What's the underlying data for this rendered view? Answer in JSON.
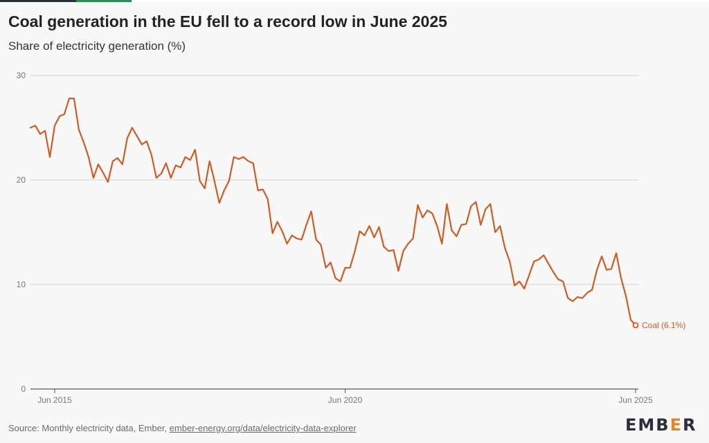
{
  "title": "Coal generation in the EU fell to a record low in June 2025",
  "subtitle": "Share of electricity generation (%)",
  "footer": {
    "source_prefix": "Source: Monthly electricity data, Ember, ",
    "source_link": "ember-energy.org/data/electricity-data-explorer"
  },
  "logo": {
    "part1": "EMB",
    "part2": "E",
    "part3": "R"
  },
  "colors": {
    "series": "#cf5a24",
    "grid": "#cfcfcf",
    "axis": "#555555",
    "brand_dark": "#2b2f3a",
    "brand_accent": "#e08a23"
  },
  "chart_data": {
    "type": "line",
    "title": "Coal generation in the EU fell to a record low in June 2025",
    "subtitle": "Share of electricity generation (%)",
    "ylim": [
      0,
      30
    ],
    "yticks": [
      0,
      10,
      20,
      30
    ],
    "xlim": [
      "2015-01",
      "2025-06"
    ],
    "xticks": [
      {
        "x": "2015-06",
        "label": "Jun 2015"
      },
      {
        "x": "2020-06",
        "label": "Jun 2020"
      },
      {
        "x": "2025-06",
        "label": "Jun 2025"
      }
    ],
    "grid": true,
    "end_label": "Coal (6.1%)",
    "series": [
      {
        "name": "Coal",
        "x": [
          "2015-01",
          "2015-02",
          "2015-03",
          "2015-04",
          "2015-05",
          "2015-06",
          "2015-07",
          "2015-08",
          "2015-09",
          "2015-10",
          "2015-11",
          "2015-12",
          "2016-01",
          "2016-02",
          "2016-03",
          "2016-04",
          "2016-05",
          "2016-06",
          "2016-07",
          "2016-08",
          "2016-09",
          "2016-10",
          "2016-11",
          "2016-12",
          "2017-01",
          "2017-02",
          "2017-03",
          "2017-04",
          "2017-05",
          "2017-06",
          "2017-07",
          "2017-08",
          "2017-09",
          "2017-10",
          "2017-11",
          "2017-12",
          "2018-01",
          "2018-02",
          "2018-03",
          "2018-04",
          "2018-05",
          "2018-06",
          "2018-07",
          "2018-08",
          "2018-09",
          "2018-10",
          "2018-11",
          "2018-12",
          "2019-01",
          "2019-02",
          "2019-03",
          "2019-04",
          "2019-05",
          "2019-06",
          "2019-07",
          "2019-08",
          "2019-09",
          "2019-10",
          "2019-11",
          "2019-12",
          "2020-01",
          "2020-02",
          "2020-03",
          "2020-04",
          "2020-05",
          "2020-06",
          "2020-07",
          "2020-08",
          "2020-09",
          "2020-10",
          "2020-11",
          "2020-12",
          "2021-01",
          "2021-02",
          "2021-03",
          "2021-04",
          "2021-05",
          "2021-06",
          "2021-07",
          "2021-08",
          "2021-09",
          "2021-10",
          "2021-11",
          "2021-12",
          "2022-01",
          "2022-02",
          "2022-03",
          "2022-04",
          "2022-05",
          "2022-06",
          "2022-07",
          "2022-08",
          "2022-09",
          "2022-10",
          "2022-11",
          "2022-12",
          "2023-01",
          "2023-02",
          "2023-03",
          "2023-04",
          "2023-05",
          "2023-06",
          "2023-07",
          "2023-08",
          "2023-09",
          "2023-10",
          "2023-11",
          "2023-12",
          "2024-01",
          "2024-02",
          "2024-03",
          "2024-04",
          "2024-05",
          "2024-06",
          "2024-07",
          "2024-08",
          "2024-09",
          "2024-10",
          "2024-11",
          "2024-12",
          "2025-01",
          "2025-02",
          "2025-03",
          "2025-04",
          "2025-05",
          "2025-06"
        ],
        "values": [
          25.0,
          25.2,
          24.4,
          24.7,
          22.2,
          25.2,
          26.1,
          26.3,
          27.8,
          27.8,
          24.8,
          23.6,
          22.2,
          20.2,
          21.5,
          20.7,
          19.8,
          21.8,
          22.1,
          21.5,
          24.0,
          25.0,
          24.2,
          23.4,
          23.7,
          22.4,
          20.2,
          20.6,
          21.6,
          20.2,
          21.4,
          21.2,
          22.2,
          21.9,
          22.9,
          19.9,
          19.2,
          21.8,
          19.9,
          17.8,
          19.0,
          19.9,
          22.2,
          22.0,
          22.2,
          21.8,
          21.6,
          19.0,
          19.1,
          18.2,
          14.9,
          16.0,
          15.1,
          13.9,
          14.7,
          14.4,
          14.3,
          15.7,
          17.0,
          14.3,
          13.8,
          11.6,
          12.1,
          10.6,
          10.3,
          11.6,
          11.6,
          13.2,
          15.1,
          14.7,
          15.6,
          14.5,
          15.5,
          13.6,
          13.2,
          13.3,
          11.3,
          13.2,
          13.9,
          14.4,
          17.6,
          16.4,
          17.1,
          16.8,
          15.6,
          13.9,
          17.7,
          15.2,
          14.6,
          15.7,
          15.8,
          17.5,
          17.9,
          15.7,
          17.2,
          17.7,
          15.0,
          15.6,
          13.5,
          12.2,
          9.9,
          10.3,
          9.6,
          10.9,
          12.2,
          12.4,
          12.8,
          12.0,
          11.2,
          10.5,
          10.3,
          8.7,
          8.4,
          8.8,
          8.7,
          9.2,
          9.5,
          11.4,
          12.7,
          11.4,
          11.5,
          13.0,
          10.6,
          8.9,
          6.6,
          6.1
        ]
      }
    ]
  }
}
